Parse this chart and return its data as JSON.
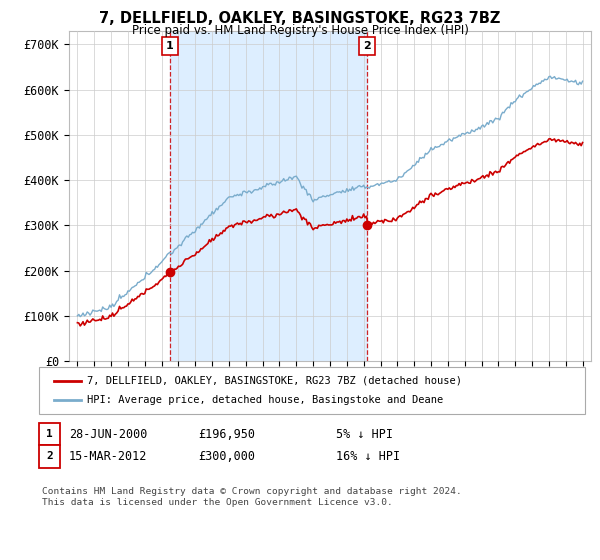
{
  "title": "7, DELLFIELD, OAKLEY, BASINGSTOKE, RG23 7BZ",
  "subtitle": "Price paid vs. HM Land Registry's House Price Index (HPI)",
  "ylabel_ticks": [
    "£0",
    "£100K",
    "£200K",
    "£300K",
    "£400K",
    "£500K",
    "£600K",
    "£700K"
  ],
  "ytick_values": [
    0,
    100000,
    200000,
    300000,
    400000,
    500000,
    600000,
    700000
  ],
  "ylim": [
    0,
    730000
  ],
  "legend_line1": "7, DELLFIELD, OAKLEY, BASINGSTOKE, RG23 7BZ (detached house)",
  "legend_line2": "HPI: Average price, detached house, Basingstoke and Deane",
  "annotation1_date": "28-JUN-2000",
  "annotation1_price": "£196,950",
  "annotation1_hpi": "5% ↓ HPI",
  "annotation2_date": "15-MAR-2012",
  "annotation2_price": "£300,000",
  "annotation2_hpi": "16% ↓ HPI",
  "point1_x": 2000.49,
  "point1_y": 196950,
  "point2_x": 2012.21,
  "point2_y": 300000,
  "red_line_color": "#cc0000",
  "blue_line_color": "#7aaccc",
  "shade_color": "#ddeeff",
  "background_color": "#ffffff",
  "grid_color": "#cccccc",
  "footer_text": "Contains HM Land Registry data © Crown copyright and database right 2024.\nThis data is licensed under the Open Government Licence v3.0.",
  "xlim_start": 1994.5,
  "xlim_end": 2025.5
}
